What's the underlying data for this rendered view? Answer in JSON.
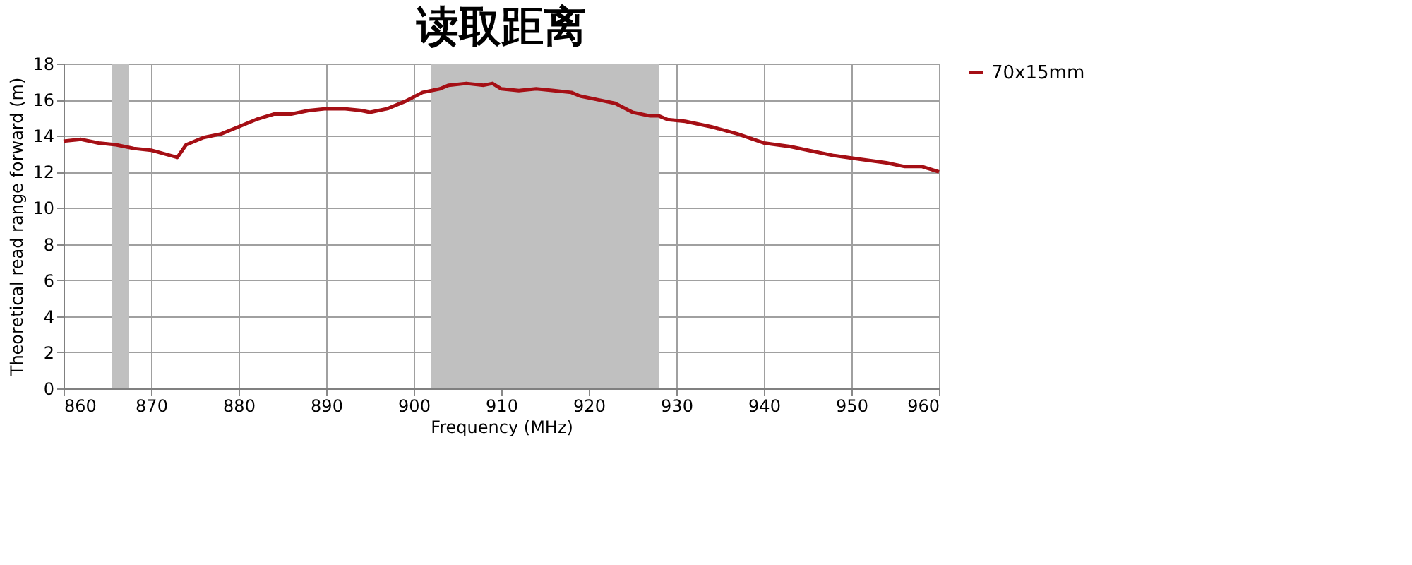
{
  "chart_data": {
    "type": "line",
    "title": "读取距离",
    "xlabel": "Frequency (MHz)",
    "ylabel": "Theoretical read range forward (m)",
    "x": [
      860,
      862,
      864,
      866,
      868,
      870,
      873,
      874,
      876,
      878,
      880,
      882,
      884,
      886,
      888,
      890,
      892,
      894,
      895,
      897,
      899,
      901,
      903,
      904,
      906,
      908,
      909,
      910,
      912,
      914,
      916,
      918,
      919,
      921,
      923,
      925,
      927,
      928,
      929,
      931,
      934,
      937,
      940,
      943,
      946,
      948,
      951,
      954,
      956,
      958,
      960
    ],
    "series": [
      {
        "name": "70x15mm",
        "color": "#a50f15",
        "values": [
          13.7,
          13.8,
          13.6,
          13.5,
          13.3,
          13.2,
          12.8,
          13.5,
          13.9,
          14.1,
          14.5,
          14.9,
          15.2,
          15.2,
          15.4,
          15.5,
          15.5,
          15.4,
          15.3,
          15.5,
          15.9,
          16.4,
          16.6,
          16.8,
          16.9,
          16.8,
          16.9,
          16.6,
          16.5,
          16.6,
          16.5,
          16.4,
          16.2,
          16.0,
          15.8,
          15.3,
          15.1,
          15.1,
          14.9,
          14.8,
          14.5,
          14.1,
          13.6,
          13.4,
          13.1,
          12.9,
          12.7,
          12.5,
          12.3,
          12.3,
          12.0
        ]
      }
    ],
    "bands": [
      {
        "axis": "x",
        "from": 865.5,
        "to": 867.5,
        "color": "#c0c0c0"
      },
      {
        "axis": "x",
        "from": 902,
        "to": 928,
        "color": "#c0c0c0"
      }
    ],
    "xlim": [
      860,
      960
    ],
    "xticks": [
      860,
      870,
      880,
      890,
      900,
      910,
      920,
      930,
      940,
      950,
      960
    ],
    "ylim": [
      0,
      18
    ],
    "yticks": [
      0,
      2,
      4,
      6,
      8,
      10,
      12,
      14,
      16,
      18
    ],
    "grid": true,
    "legend": "right",
    "marker": "none",
    "line_style": "solid"
  }
}
